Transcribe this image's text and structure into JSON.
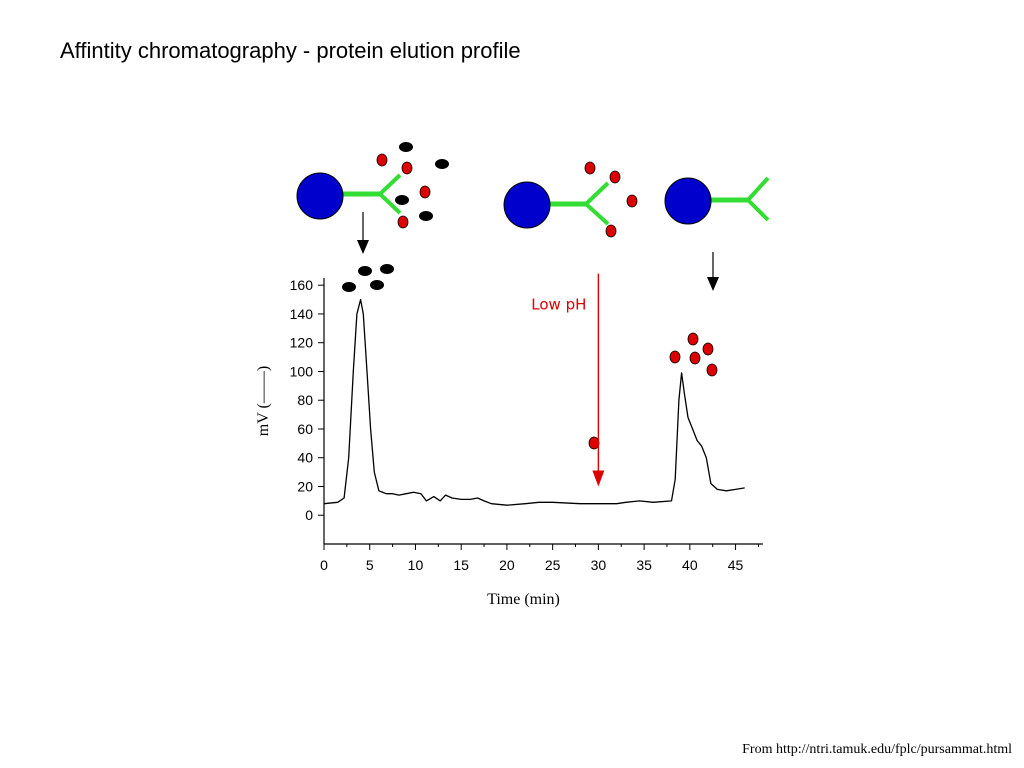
{
  "slide": {
    "title": "Affintity chromatography - protein elution profile",
    "source": "From http://ntri.tamuk.edu/fplc/pursammat.html"
  },
  "colors": {
    "bead": "#0000cc",
    "ligand": "#33dd33",
    "bound_protein": "#dd0000",
    "unbound_protein": "#000000",
    "trace": "#000000",
    "annotation": "#dd0000"
  },
  "chart_data": {
    "type": "line",
    "title": "",
    "xlabel": "Time (min)",
    "ylabel": "mV (——)",
    "xlim": [
      0,
      48
    ],
    "ylim": [
      -20,
      165
    ],
    "xticks": [
      0,
      5,
      10,
      15,
      20,
      25,
      30,
      35,
      40,
      45
    ],
    "yticks": [
      0,
      20,
      40,
      60,
      80,
      100,
      120,
      140,
      160
    ],
    "grid": false,
    "series": [
      {
        "x": [
          0,
          1.5,
          2.2,
          2.7,
          3.2,
          3.6,
          4.0,
          4.3,
          4.7,
          5.1,
          5.5,
          6.0,
          6.8,
          7.5,
          8.2,
          9.0,
          9.8,
          10.6,
          11.2,
          12.0,
          12.7,
          13.3,
          14.0,
          15.0,
          16.0,
          16.8,
          17.5,
          18.3,
          20.0,
          22.0,
          23.5,
          25.0,
          28.0,
          30.0,
          32.0,
          33.0,
          34.5,
          36.0,
          38.0,
          38.4,
          38.8,
          39.1,
          39.4,
          39.8,
          40.3,
          40.8,
          41.3,
          41.8,
          42.3,
          43.0,
          44.0,
          45.0,
          46.0
        ],
        "y": [
          8,
          9,
          12,
          40,
          100,
          140,
          150,
          140,
          100,
          60,
          30,
          17,
          15,
          15,
          14,
          15,
          16,
          15,
          10,
          13,
          10,
          14,
          12,
          11,
          11,
          12,
          10,
          8,
          7,
          8,
          9,
          9,
          8,
          8,
          8,
          9,
          10,
          9,
          10,
          25,
          80,
          99,
          85,
          68,
          60,
          52,
          48,
          40,
          22,
          18,
          17,
          18,
          19
        ]
      }
    ],
    "annotations": [
      {
        "text": "Low pH",
        "x": 30,
        "from_y": 168,
        "to_y": 20
      }
    ]
  }
}
